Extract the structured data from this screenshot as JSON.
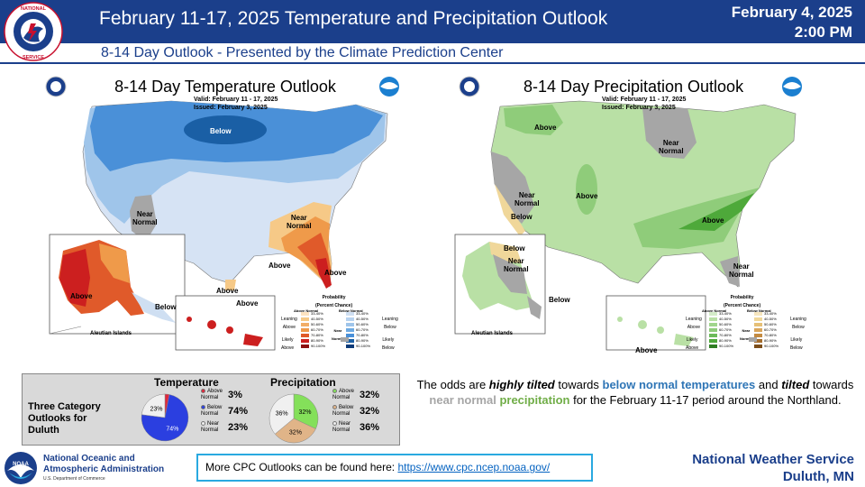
{
  "header": {
    "title": "February 11-17, 2025 Temperature  and Precipitation Outlook",
    "date_line1": "February 4, 2025",
    "date_line2": "2:00 PM",
    "subtitle": "8-14 Day Outlook - Presented by the Climate Prediction Center",
    "logo_text": "NATIONAL WEATHER SERVICE"
  },
  "temp_map": {
    "title": "8-14 Day Temperature Outlook",
    "valid": "Valid:   February 11 - 17, 2025",
    "issued": "Issued:   February 3, 2025",
    "labels": {
      "below": "Below",
      "near_normal": "Near\nNormal",
      "near_normal_se": "Near\nNormal",
      "above_se": "Above",
      "above_fl": "Above",
      "above_ak": "Above",
      "below_ak": "Below",
      "above_hi": "Above",
      "above_tx": "Above",
      "aleutian": "Aleutian Islands"
    },
    "colors": {
      "below_dark": "#1a5fa5",
      "below_mid": "#4a90d8",
      "below_light": "#9fc5ea",
      "below_faint": "#cfdff2",
      "near": "#a6a6a6",
      "above_light": "#f6c987",
      "above_mid": "#ef9a4a",
      "above_dark": "#e05a2a",
      "above_red": "#cc1f1f"
    }
  },
  "precip_map": {
    "title": "8-14 Day Precipitation Outlook",
    "valid": "Valid:   February 11 - 17, 2025",
    "issued": "Issued:   February 3, 2025",
    "labels": {
      "above_nw": "Above",
      "near_normal_ne": "Near\nNormal",
      "near_normal_w": "Near\nNormal",
      "below_w": "Below",
      "above_c": "Above",
      "above_se": "Above",
      "near_normal_tx": "Near\nNormal",
      "below_ak": "Below",
      "near_normal_ak": "Near\nNormal",
      "below_ak2": "Below",
      "above_hi": "Above",
      "aleutian": "Aleutian Islands"
    },
    "colors": {
      "above_light": "#b9e0a5",
      "above_mid": "#8fcc7a",
      "above_dark": "#4ea93a",
      "near": "#a6a6a6",
      "below_light": "#f0d79a"
    }
  },
  "legend": {
    "heading": "Probability\n(Percent Chance)",
    "above_col": "Above Normal",
    "below_col": "Below Normal",
    "leaning_above": "Leaning\nAbove",
    "likely_above": "Likely\nAbove",
    "leaning_below": "Leaning\nBelow",
    "likely_below": "Likely\nBelow",
    "near_normal": "Near\nNormal",
    "ranges": [
      "33-40%",
      "40-50%",
      "50-60%",
      "60-70%",
      "70-80%",
      "80-90%",
      "90-100%"
    ]
  },
  "duluth": {
    "box_label": "Three Category Outlooks for Duluth",
    "temperature": {
      "title": "Temperature",
      "rows": [
        {
          "label": "Above\nNormal",
          "pct": "3%",
          "color": "#e0283c"
        },
        {
          "label": "Below\nNormal",
          "pct": "74%",
          "color": "#2b3fe0"
        },
        {
          "label": "Near\nNormal",
          "pct": "23%",
          "color": "#f0f0f0"
        }
      ],
      "pie_labels": [
        "23%",
        "74%"
      ],
      "values": [
        3,
        74,
        23
      ]
    },
    "precipitation": {
      "title": "Precipitation",
      "rows": [
        {
          "label": "Above\nNormal",
          "pct": "32%",
          "color": "#84e05a"
        },
        {
          "label": "Below\nNormal",
          "pct": "32%",
          "color": "#e0b488"
        },
        {
          "label": "Near\nNormal",
          "pct": "36%",
          "color": "#f0f0f0"
        }
      ],
      "pie_labels": [
        "36%",
        "32%",
        "32%"
      ],
      "values": [
        32,
        32,
        36
      ]
    }
  },
  "summary": {
    "p1": "The odds are ",
    "p2": "highly tilted",
    "p3": " towards ",
    "p4": "below normal temperatures",
    "p5": " and ",
    "p6": "tilted",
    "p7": " towards ",
    "p8": "near normal",
    "p9": " ",
    "p10": "precipitation",
    "p11": " for the February 11-17 period around the Northland."
  },
  "footer": {
    "noaa_line1": "National Oceanic and",
    "noaa_line2": "Atmospheric Administration",
    "noaa_dept": "U.S. Department of Commerce",
    "cpc_text": "More CPC Outlooks can be found here: ",
    "cpc_link": "https://www.cpc.ncep.noaa.gov/",
    "nws_line1": "National Weather Service",
    "nws_line2": "Duluth, MN"
  }
}
